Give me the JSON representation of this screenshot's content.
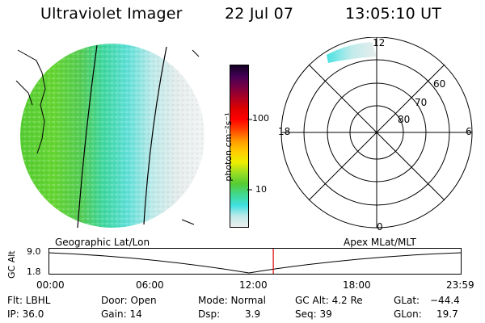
{
  "header": {
    "instrument": "Ultraviolet Imager",
    "date": "22 Jul 07",
    "time": "13:05:10 UT"
  },
  "colorbar": {
    "unit_label": "photon cm⁻²s⁻¹",
    "ticks": [
      "100",
      "10"
    ]
  },
  "polar_plot": {
    "mlt_labels": {
      "top": "12",
      "bottom": "0",
      "left": "18",
      "right": "6"
    },
    "lat_labels": [
      "60",
      "70",
      "80"
    ]
  },
  "timeline": {
    "left_title": "Geographic Lat/Lon",
    "right_title": "Apex MLat/MLT",
    "ylabel": "GC Alt",
    "y_max": "9.0",
    "y_min": "1.8",
    "times": [
      "00:00",
      "06:00",
      "12:00",
      "18:00",
      "23:59"
    ],
    "current_time_fraction": 0.5452
  },
  "status": {
    "filter": "Flt: LBHL",
    "ip": "IP: 36.0",
    "door": "Door: Open",
    "gain": "Gain: 14",
    "mode": "Mode: Normal",
    "dsp_label": "Dsp:",
    "dsp_value": "3.9",
    "gc_alt": "GC Alt: 4.2 Re",
    "seq": "Seq: 39",
    "glat_label": "GLat:",
    "glat_value": "−44.4",
    "glon_label": "GLon:",
    "glon_value": "19.7"
  },
  "colors": {
    "accent_marker": "#dd0000",
    "colorbar": [
      "#eeeeee",
      "#bfeaea",
      "#40e0e0",
      "#40d890",
      "#55cc33",
      "#99dd22",
      "#eeee00",
      "#ffcc00",
      "#ff9900",
      "#ff4400",
      "#ff0000",
      "#dd0000",
      "#aa0022",
      "#770044",
      "#440055",
      "#110022"
    ]
  }
}
